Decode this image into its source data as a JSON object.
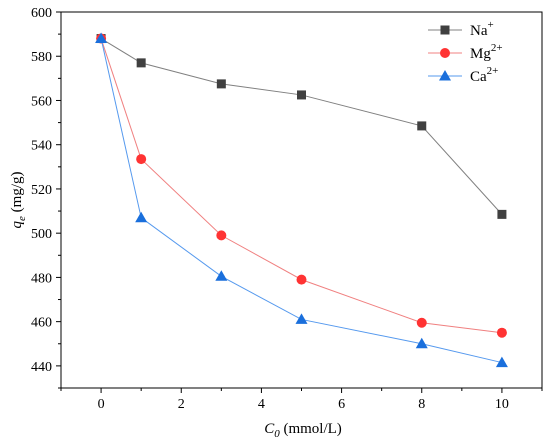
{
  "chart_data": {
    "type": "line",
    "title": "",
    "xlabel": {
      "main": "C",
      "sub": "0",
      "unit": " (mmol/L)"
    },
    "ylabel": {
      "main": "q",
      "sub": "e",
      "unit": " (mg/g)"
    },
    "xlim": [
      -1,
      11
    ],
    "ylim": [
      430,
      600
    ],
    "xticks": [
      0,
      2,
      4,
      6,
      8,
      10
    ],
    "yticks": [
      440,
      460,
      480,
      500,
      520,
      540,
      560,
      580,
      600
    ],
    "grid": false,
    "legend_position": "top-right",
    "x": [
      0,
      1,
      3,
      5,
      8,
      10
    ],
    "series": [
      {
        "name": "Na",
        "name_sup": "+",
        "color": "#808080",
        "marker_color": "#404040",
        "marker": "square",
        "values": [
          588,
          577,
          567.5,
          562.5,
          548.5,
          508.5
        ]
      },
      {
        "name": "Mg",
        "name_sup": "2+",
        "color": "#f08080",
        "marker_color": "#ff3333",
        "marker": "circle",
        "values": [
          588,
          533.5,
          499,
          479,
          459.5,
          455
        ]
      },
      {
        "name": "Ca",
        "name_sup": "2+",
        "color": "#5599ee",
        "marker_color": "#1a6fdc",
        "marker": "triangle",
        "values": [
          588,
          507,
          480.5,
          461,
          450,
          441.5
        ]
      }
    ]
  }
}
